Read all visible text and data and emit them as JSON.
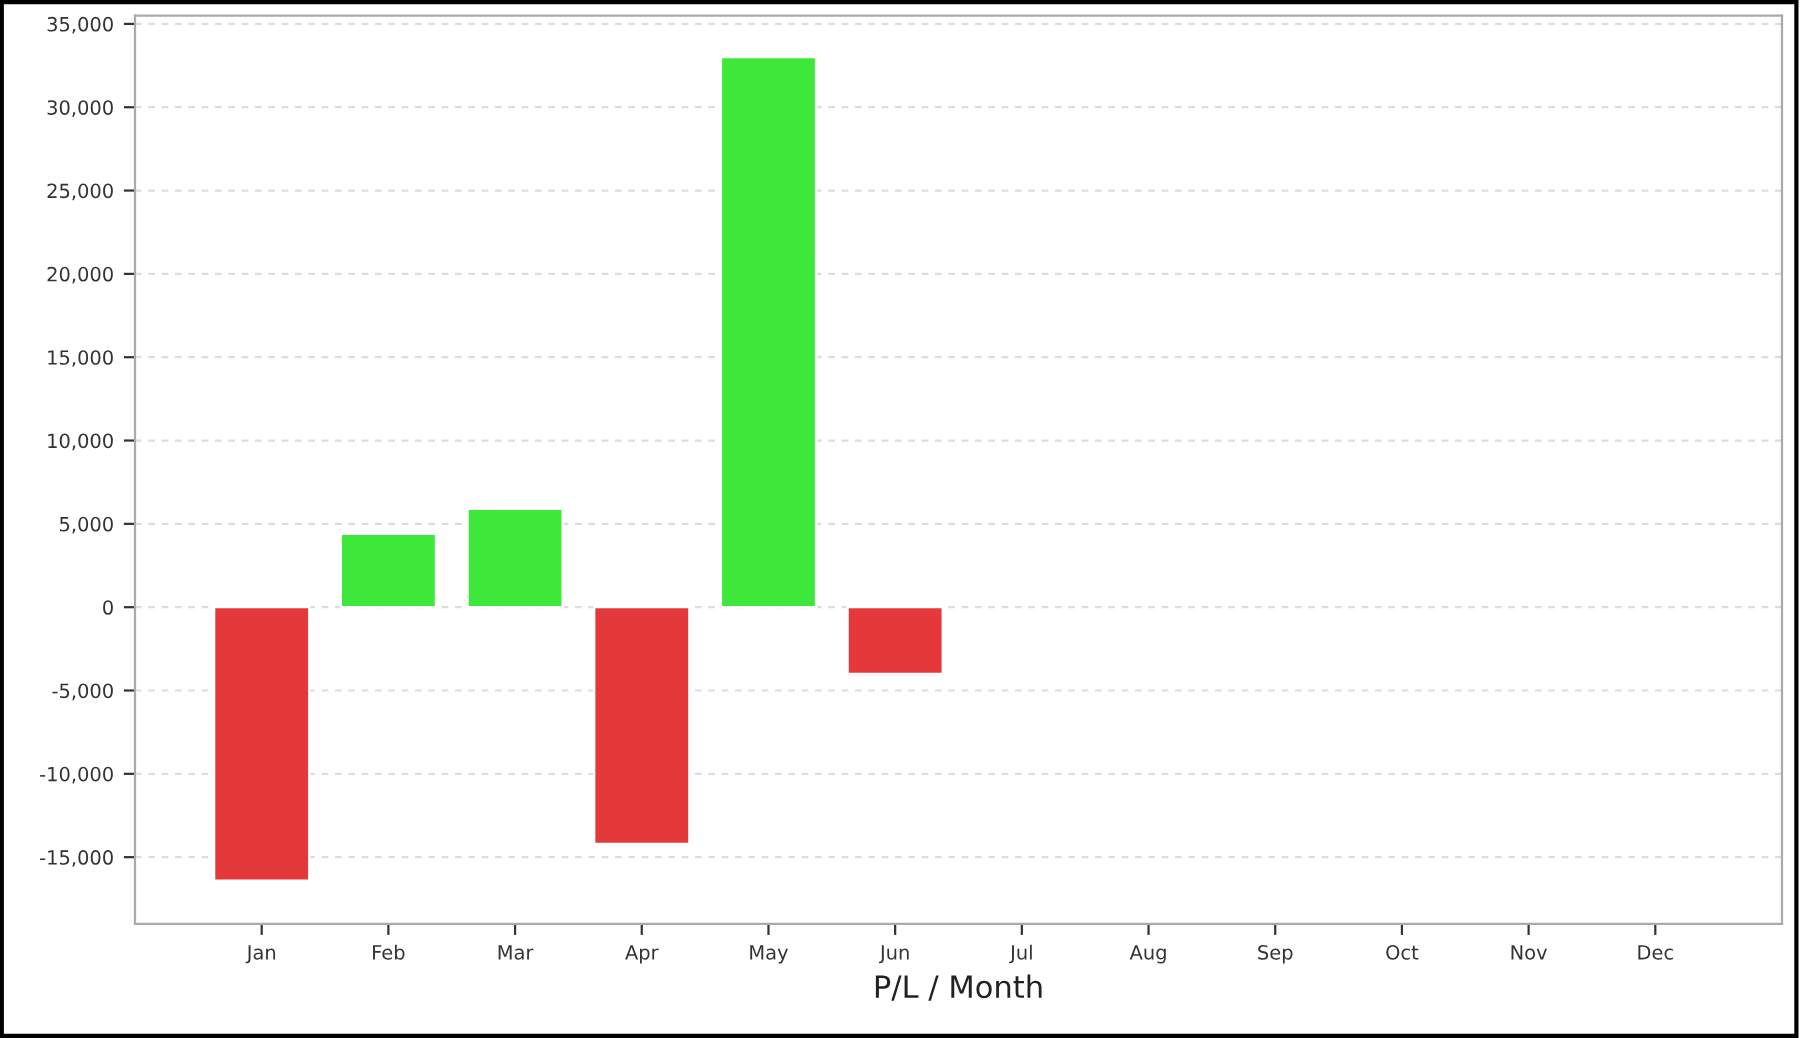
{
  "chart_data": {
    "type": "bar",
    "xlabel": "P/L / Month",
    "categories": [
      "Jan",
      "Feb",
      "Mar",
      "Apr",
      "May",
      "Jun",
      "Jul",
      "Aug",
      "Sep",
      "Oct",
      "Nov",
      "Dec"
    ],
    "values": [
      -16400,
      4400,
      5900,
      -14200,
      33000,
      -4000,
      null,
      null,
      null,
      null,
      null,
      null
    ],
    "colors": [
      "#e5383b",
      "#3de83b",
      "#3de83b",
      "#e5383b",
      "#3de83b",
      "#e5383b",
      null,
      null,
      null,
      null,
      null,
      null
    ],
    "ylim": [
      -19000,
      35500
    ],
    "yticks": [
      {
        "value": -15000,
        "label": "-15,000"
      },
      {
        "value": -10000,
        "label": "-10,000"
      },
      {
        "value": -5000,
        "label": "-5,000"
      },
      0,
      {
        "value": 5000,
        "label": "5,000"
      },
      {
        "value": 10000,
        "label": "10,000"
      },
      {
        "value": 15000,
        "label": "15,000"
      },
      {
        "value": 20000,
        "label": "20,000"
      },
      {
        "value": 25000,
        "label": "25,000"
      },
      {
        "value": 30000,
        "label": "30,000"
      },
      {
        "value": 35000,
        "label": "35,000"
      }
    ],
    "grid": "y",
    "legend": false
  }
}
